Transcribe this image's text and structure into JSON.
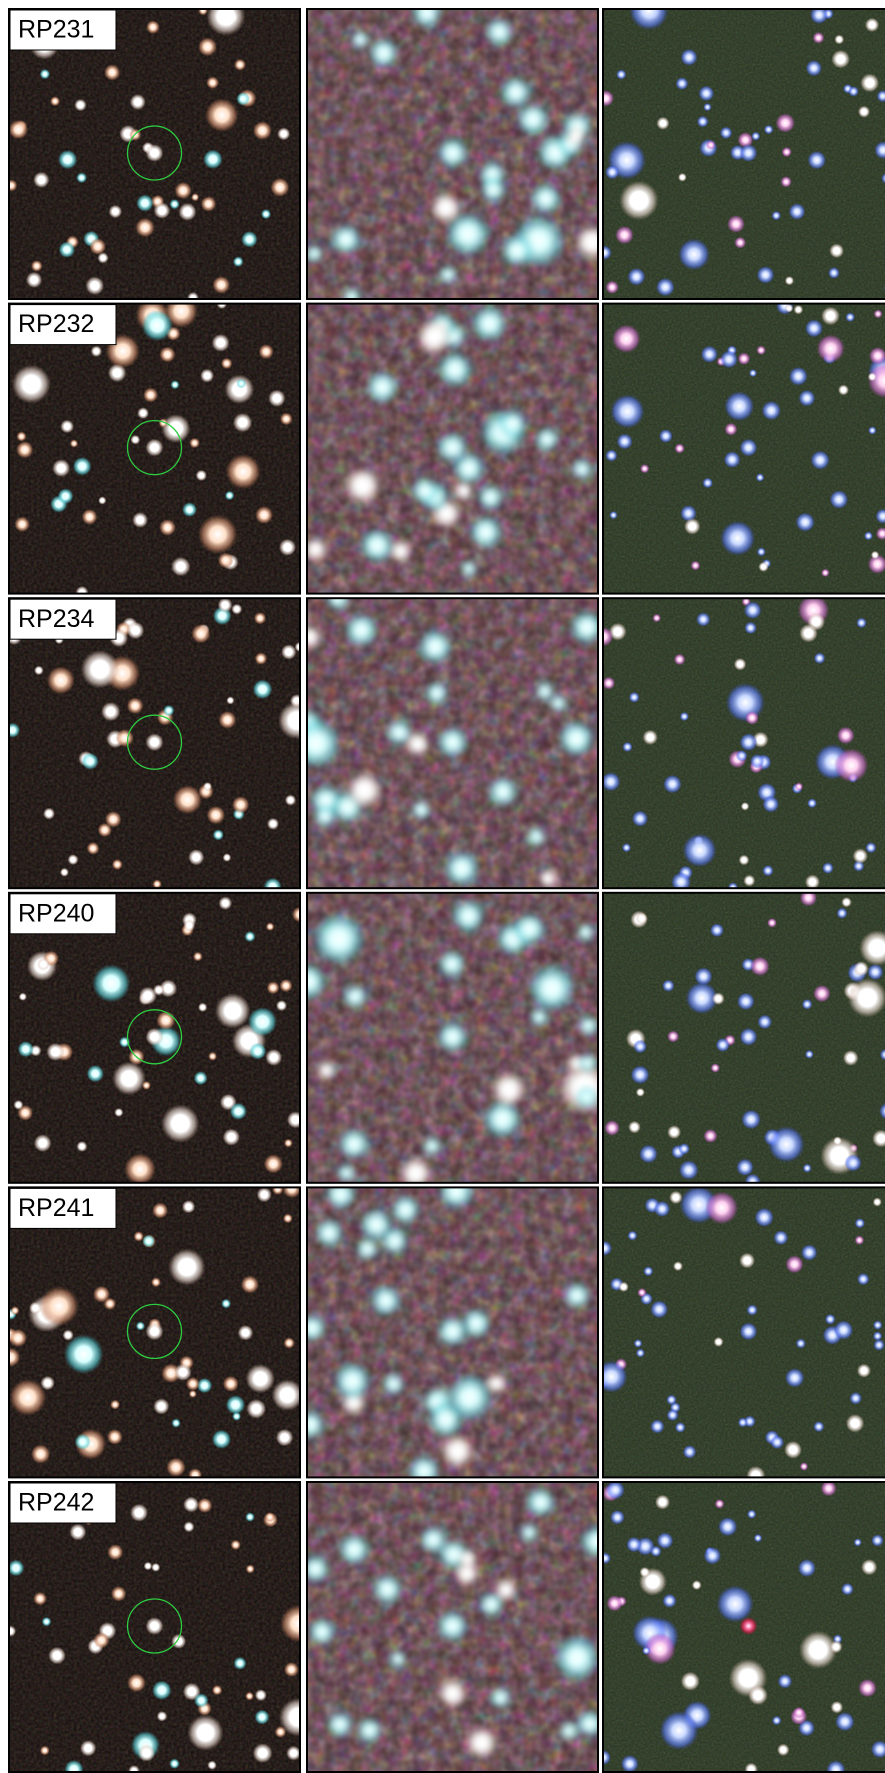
{
  "rows": [
    {
      "label": "RP231"
    },
    {
      "label": "RP232"
    },
    {
      "label": "RP234"
    },
    {
      "label": "RP240"
    },
    {
      "label": "RP241"
    },
    {
      "label": "RP242"
    }
  ]
}
